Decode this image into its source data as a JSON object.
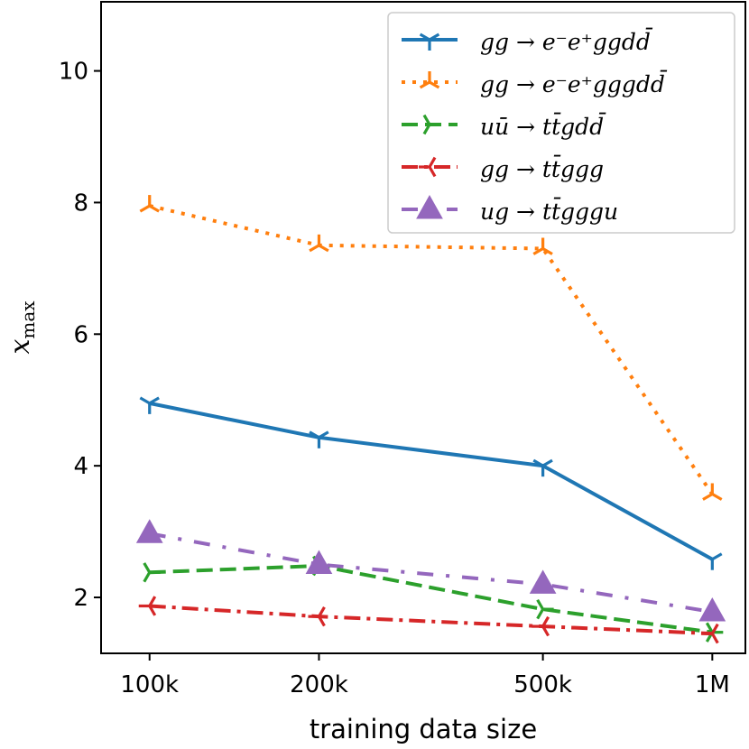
{
  "chart_data": {
    "type": "line",
    "xlabel": "training data size",
    "ylabel": "x",
    "ylabel_subscript": "max",
    "x_scale": "log",
    "xlim": [
      82000,
      1145000
    ],
    "ylim": [
      1.15,
      11.05
    ],
    "x": [
      100000,
      200000,
      500000,
      1000000
    ],
    "xticks": [
      {
        "value": 100000,
        "label": "100k"
      },
      {
        "value": 200000,
        "label": "200k"
      },
      {
        "value": 500000,
        "label": "500k"
      },
      {
        "value": 1000000,
        "label": "1M"
      }
    ],
    "yticks": [
      {
        "value": 2,
        "label": "2"
      },
      {
        "value": 4,
        "label": "4"
      },
      {
        "value": 6,
        "label": "6"
      },
      {
        "value": 8,
        "label": "8"
      },
      {
        "value": 10,
        "label": "10"
      }
    ],
    "legend_position": "top-right",
    "grid": false,
    "series": [
      {
        "name": "gg → e⁻e⁺ggdd̄",
        "color": "#1f77b4",
        "dash": "solid",
        "marker": "tri_down",
        "values": [
          4.95,
          4.43,
          4.0,
          2.58
        ]
      },
      {
        "name": "gg → e⁻e⁺gggdd̄",
        "color": "#ff7f0e",
        "dash": "dotted",
        "marker": "tri_up",
        "values": [
          7.95,
          7.35,
          7.3,
          3.57
        ]
      },
      {
        "name": "uū → tt̄gdd̄",
        "color": "#2ca02c",
        "dash": "dashed",
        "marker": "tri_left",
        "values": [
          2.38,
          2.48,
          1.82,
          1.47
        ]
      },
      {
        "name": "gg → tt̄ggg",
        "color": "#d62728",
        "dash": "dashdot",
        "marker": "tri_right",
        "values": [
          1.87,
          1.71,
          1.56,
          1.45
        ]
      },
      {
        "name": "ug → tt̄gggu",
        "color": "#9467bd",
        "dash": "loosedashdot",
        "marker": "triangle",
        "values": [
          2.97,
          2.5,
          2.2,
          1.78
        ]
      }
    ]
  }
}
